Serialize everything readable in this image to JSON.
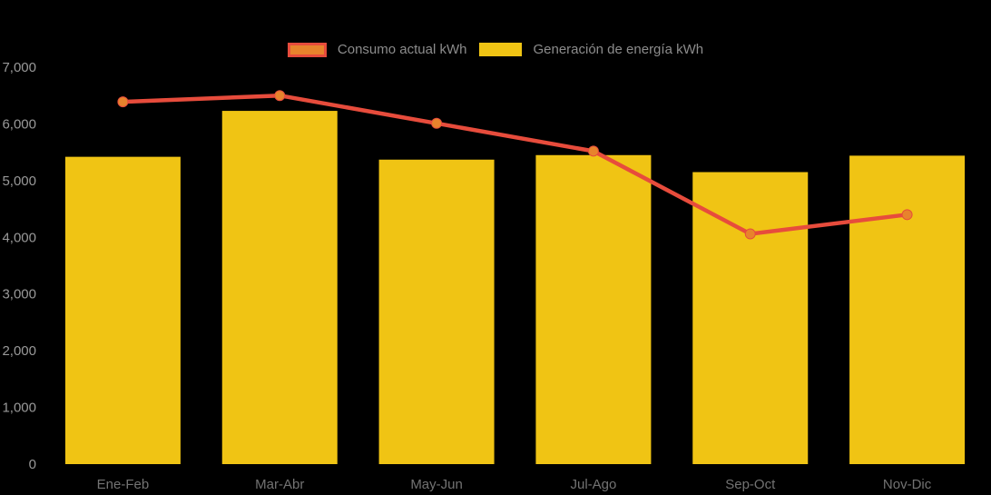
{
  "background_color": "#000000",
  "legend": {
    "text_color": "#8C8C8C",
    "items": [
      {
        "label": "Consumo actual kWh",
        "type": "line",
        "fill": "#E8832C",
        "border": "#E74C3C"
      },
      {
        "label": "Generación de energía kWh",
        "type": "bar",
        "fill": "#F0C414"
      }
    ]
  },
  "chart_data": {
    "type": "bar+line combo",
    "title": "",
    "xlabel": "",
    "ylabel": "",
    "categories": [
      "Ene-Feb",
      "Mar-Abr",
      "May-Jun",
      "Jul-Ago",
      "Sep-Oct",
      "Nov-Dic"
    ],
    "series": [
      {
        "name": "Generación de energía kWh",
        "type": "bar",
        "color": "#F0C414",
        "values": [
          5420,
          6230,
          5370,
          5450,
          5150,
          5440
        ]
      },
      {
        "name": "Consumo actual kWh",
        "type": "line",
        "color": "#E74C3C",
        "marker_color": "#E8832C",
        "values": [
          6390,
          6500,
          6010,
          5520,
          4060,
          4400
        ]
      }
    ],
    "ylim": [
      0,
      7000
    ],
    "y_ticks": [
      0,
      1000,
      2000,
      3000,
      4000,
      5000,
      6000,
      7000
    ],
    "y_tick_labels": [
      "0",
      "1,000",
      "2,000",
      "3,000",
      "4,000",
      "5,000",
      "6,000",
      "7,000"
    ],
    "grid": false,
    "legend_position": "top-center",
    "y_axis_text_color": "#999999",
    "x_axis_text_color": "#737373"
  }
}
